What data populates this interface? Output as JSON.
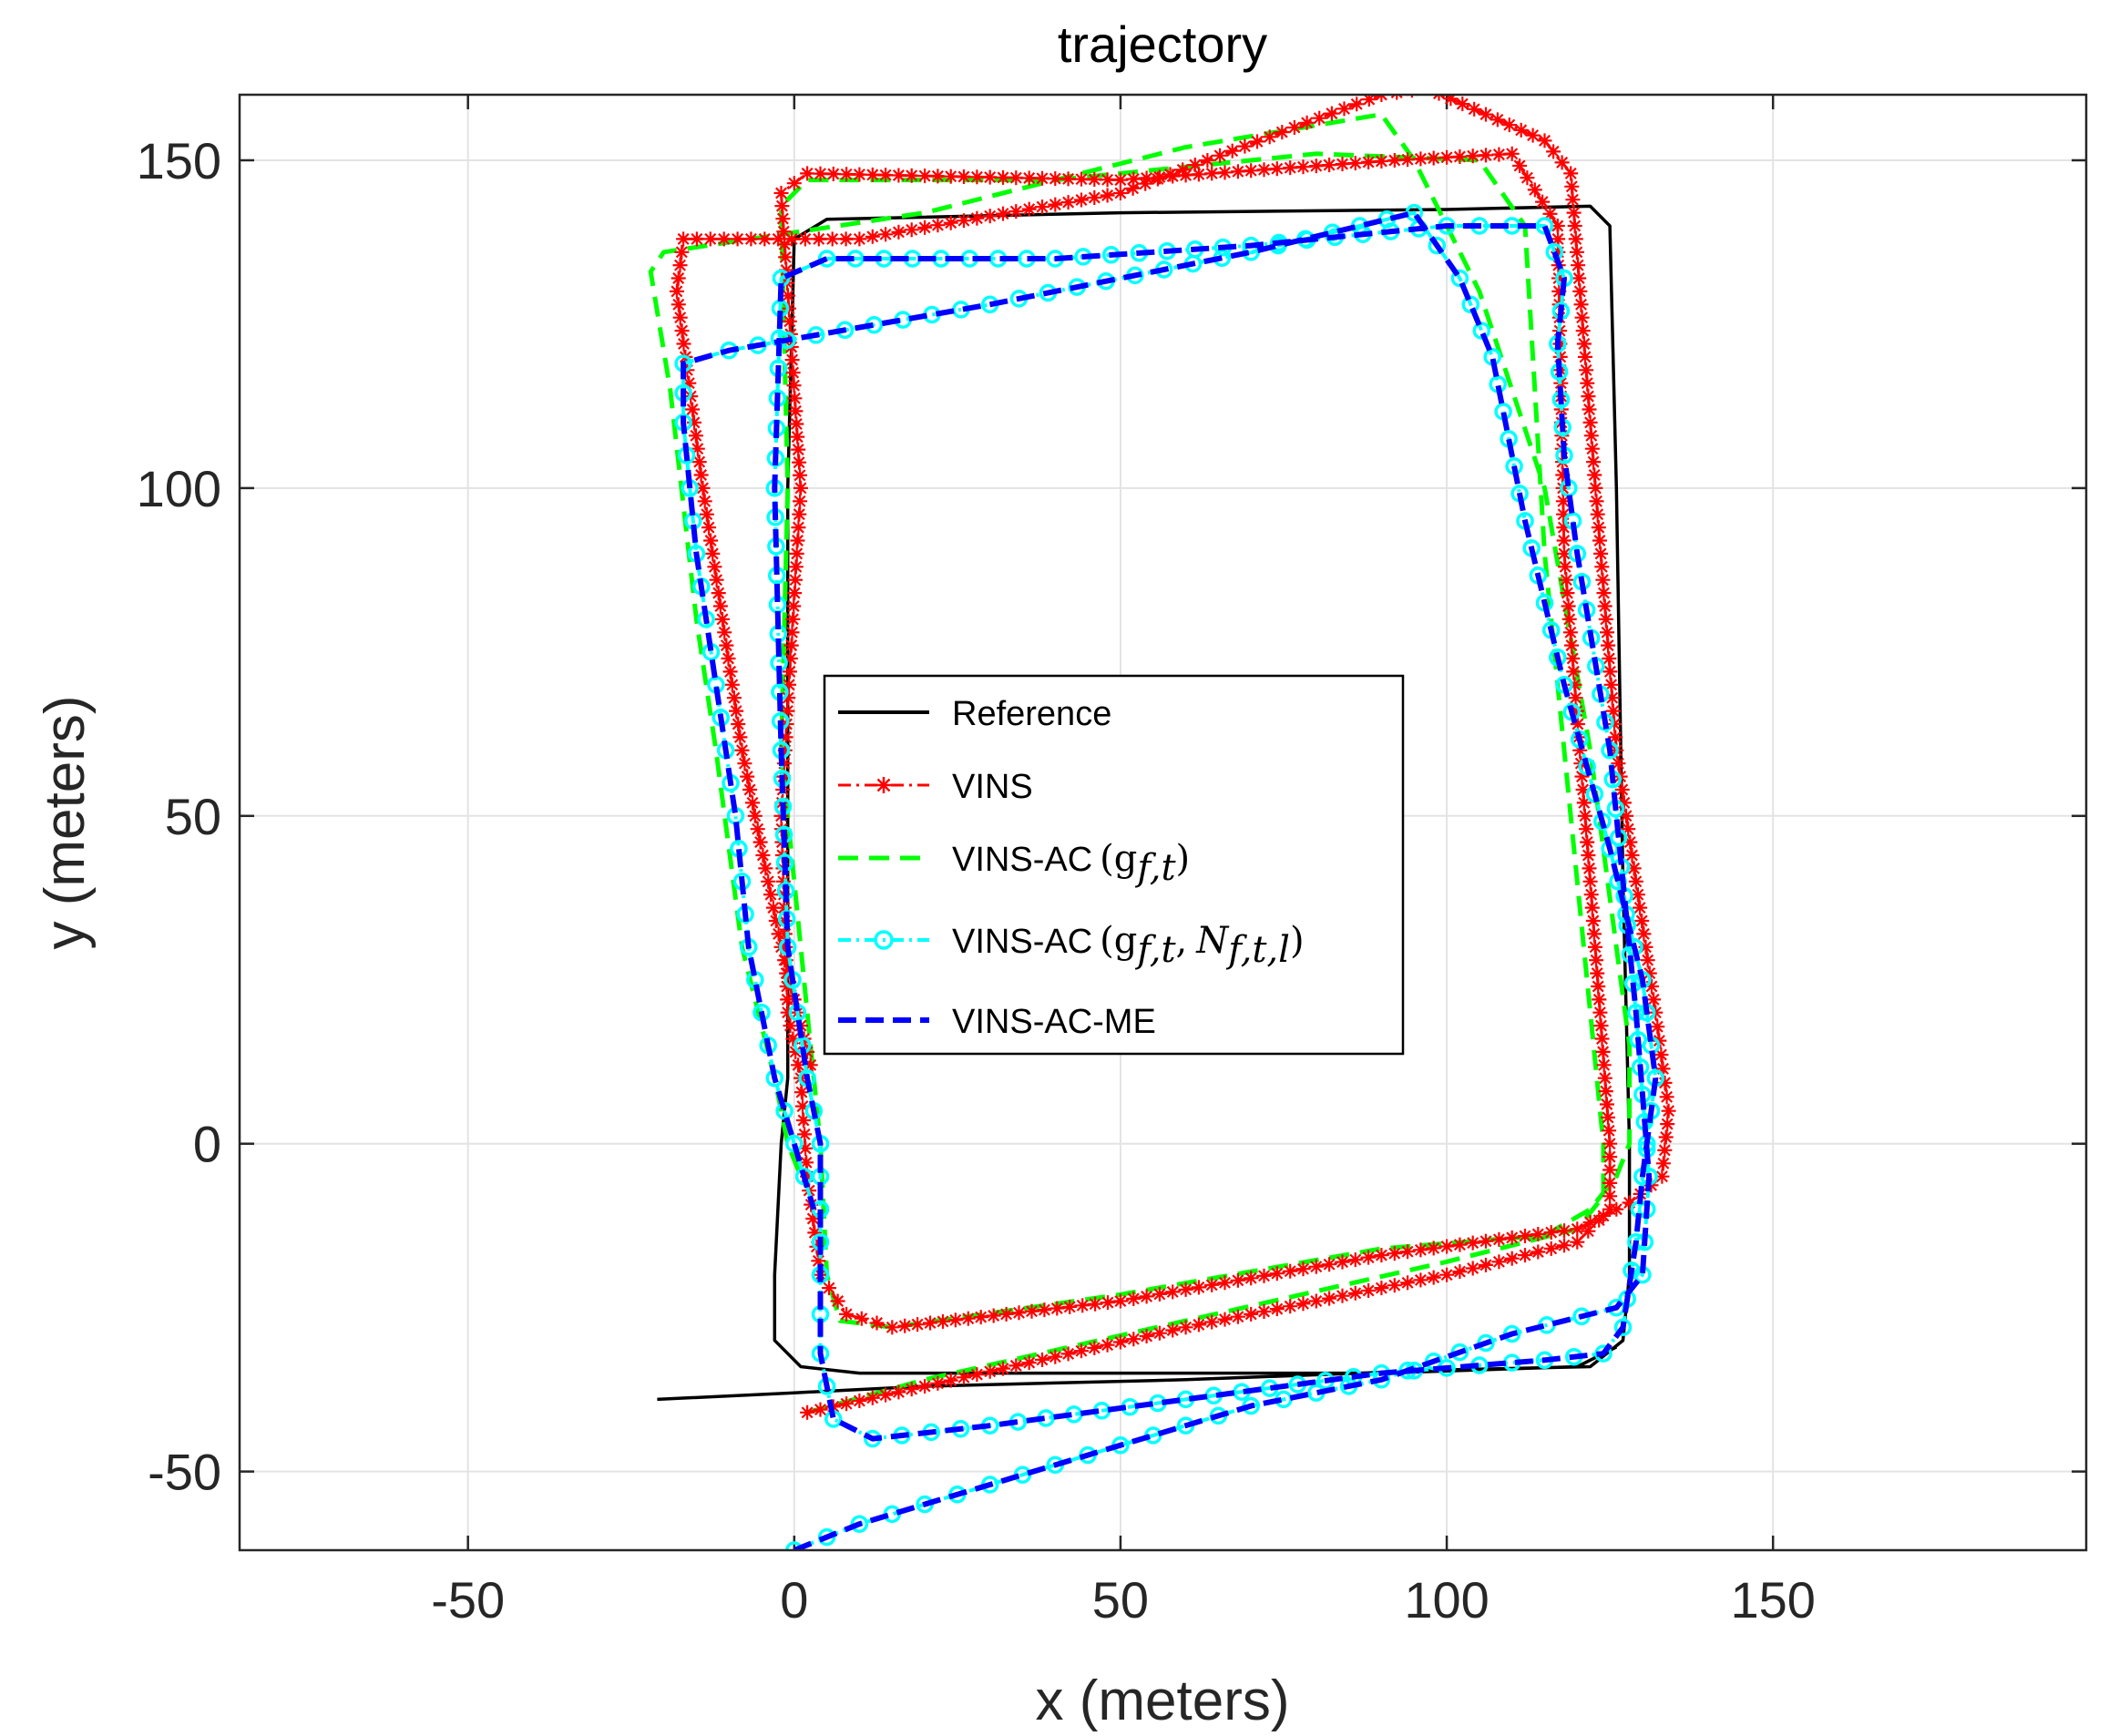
{
  "chart_data": {
    "type": "line",
    "title": "trajectory",
    "xlabel": "x (meters)",
    "ylabel": "y (meters)",
    "xlim": [
      -85,
      198
    ],
    "ylim": [
      -62,
      160
    ],
    "xticks": [
      -50,
      0,
      50,
      100,
      150
    ],
    "yticks": [
      -50,
      0,
      50,
      100,
      150
    ],
    "xtick_labels": [
      "-50",
      "0",
      "50",
      "100",
      "150"
    ],
    "ytick_labels": [
      "-50",
      "0",
      "50",
      "100",
      "150"
    ],
    "grid": true,
    "legend_location": "center",
    "legend_math": {
      "gft": "(g",
      "gft_sub": "f,t",
      "n_sym": "N",
      "n_sub": "f,t,l",
      "close": ")",
      "sep": ","
    },
    "series": [
      {
        "name": "Reference",
        "legend_label": "Reference",
        "color": "#000000",
        "style": "solid",
        "marker": "none",
        "points": [
          [
            -21,
            -39
          ],
          [
            0,
            -38
          ],
          [
            20,
            -37
          ],
          [
            60,
            -36
          ],
          [
            100,
            -34.5
          ],
          [
            122,
            -34
          ],
          [
            127,
            -30
          ],
          [
            128,
            -20
          ],
          [
            128,
            0
          ],
          [
            127,
            40
          ],
          [
            126,
            100
          ],
          [
            125,
            140
          ],
          [
            122,
            143
          ],
          [
            100,
            142.5
          ],
          [
            50,
            142
          ],
          [
            5,
            141
          ],
          [
            0,
            138
          ],
          [
            -1,
            100
          ],
          [
            -1,
            50
          ],
          [
            -1,
            10
          ],
          [
            -2,
            0
          ],
          [
            -3,
            -20
          ],
          [
            -3,
            -30
          ],
          [
            1,
            -34
          ],
          [
            10,
            -35
          ],
          [
            50,
            -35
          ],
          [
            90,
            -35
          ],
          [
            120,
            -34
          ],
          [
            126,
            -31
          ]
        ]
      },
      {
        "name": "VINS",
        "legend_label": "VINS",
        "color": "#ff0000",
        "style": "dashdot",
        "marker": "asterisk",
        "points": [
          [
            2,
            -41
          ],
          [
            20,
            -37
          ],
          [
            60,
            -28
          ],
          [
            100,
            -20
          ],
          [
            120,
            -15
          ],
          [
            125,
            -10
          ],
          [
            125,
            0
          ],
          [
            122,
            40
          ],
          [
            118,
            90
          ],
          [
            117,
            140
          ],
          [
            110,
            151
          ],
          [
            92,
            150
          ],
          [
            50,
            147
          ],
          [
            2,
            148
          ],
          [
            -2,
            145
          ],
          [
            1,
            100
          ],
          [
            -2,
            50
          ],
          [
            -1,
            20
          ],
          [
            1,
            10
          ],
          [
            2,
            -5
          ],
          [
            4,
            -20
          ],
          [
            8,
            -26
          ],
          [
            15,
            -28
          ],
          [
            50,
            -24
          ],
          [
            90,
            -17
          ],
          [
            120,
            -13
          ],
          [
            128,
            -9
          ],
          [
            133,
            -5
          ],
          [
            134,
            5
          ],
          [
            132,
            20
          ],
          [
            126,
            60
          ],
          [
            122,
            110
          ],
          [
            119,
            148
          ],
          [
            115,
            153
          ],
          [
            97,
            161
          ],
          [
            90,
            160
          ],
          [
            50,
            145
          ],
          [
            10,
            138
          ],
          [
            -17,
            138
          ],
          [
            -18,
            130
          ],
          [
            -14,
            100
          ],
          [
            -8,
            60
          ],
          [
            -2,
            30
          ],
          [
            3,
            10
          ]
        ]
      },
      {
        "name": "VINS-AC (g_{f,t})",
        "legend_label": "VINS-AC",
        "color": "#00ff00",
        "style": "dashed",
        "marker": "none",
        "points": [
          [
            2,
            -41
          ],
          [
            20,
            -36
          ],
          [
            60,
            -27
          ],
          [
            100,
            -18
          ],
          [
            120,
            -13
          ],
          [
            124,
            -8
          ],
          [
            124,
            0
          ],
          [
            120,
            40
          ],
          [
            115,
            90
          ],
          [
            112,
            140
          ],
          [
            105,
            150
          ],
          [
            80,
            151
          ],
          [
            40,
            147
          ],
          [
            2,
            147
          ],
          [
            -2,
            143
          ],
          [
            -1,
            100
          ],
          [
            -2,
            60
          ],
          [
            2,
            20
          ],
          [
            4,
            0
          ],
          [
            5,
            -20
          ],
          [
            7,
            -27
          ],
          [
            15,
            -28
          ],
          [
            50,
            -23
          ],
          [
            90,
            -16
          ],
          [
            115,
            -14
          ],
          [
            122,
            -10
          ],
          [
            126,
            -5
          ],
          [
            128,
            0
          ],
          [
            128,
            15
          ],
          [
            122,
            60
          ],
          [
            115,
            100
          ],
          [
            105,
            130
          ],
          [
            95,
            150
          ],
          [
            90,
            157
          ],
          [
            60,
            152
          ],
          [
            20,
            142
          ],
          [
            -20,
            136
          ],
          [
            -22,
            133
          ],
          [
            -19,
            115
          ],
          [
            -15,
            80
          ],
          [
            -12,
            60
          ],
          [
            -8,
            30
          ],
          [
            -3,
            10
          ],
          [
            -1,
            0
          ],
          [
            1,
            -5
          ]
        ]
      },
      {
        "name": "VINS-AC (g_{f,t}, N_{f,t,l})",
        "legend_label": "VINS-AC",
        "color": "#00ffff",
        "style": "dashdot",
        "marker": "circle",
        "points": [
          [
            0,
            -62
          ],
          [
            10,
            -58
          ],
          [
            30,
            -52
          ],
          [
            50,
            -46
          ],
          [
            70,
            -40
          ],
          [
            90,
            -36
          ],
          [
            110,
            -29
          ],
          [
            126,
            -25
          ],
          [
            130,
            -20
          ],
          [
            131,
            -5
          ],
          [
            129,
            20
          ],
          [
            125,
            60
          ],
          [
            120,
            90
          ],
          [
            118,
            105
          ],
          [
            117,
            122
          ],
          [
            118,
            132
          ],
          [
            115,
            140
          ],
          [
            100,
            140
          ],
          [
            70,
            137
          ],
          [
            40,
            135
          ],
          [
            5,
            135
          ],
          [
            -2,
            132
          ],
          [
            -3,
            100
          ],
          [
            -2,
            60
          ],
          [
            -1,
            30
          ],
          [
            2,
            10
          ],
          [
            4,
            0
          ],
          [
            4,
            -20
          ],
          [
            4,
            -32
          ],
          [
            6,
            -42
          ],
          [
            12,
            -45
          ],
          [
            30,
            -43
          ],
          [
            60,
            -39
          ],
          [
            90,
            -35
          ],
          [
            115,
            -33
          ],
          [
            124,
            -32
          ],
          [
            127,
            -28
          ],
          [
            129,
            -15
          ],
          [
            130,
            -5
          ],
          [
            132,
            10
          ],
          [
            130,
            25
          ],
          [
            125,
            45
          ],
          [
            118,
            70
          ],
          [
            112,
            95
          ],
          [
            107,
            120
          ],
          [
            102,
            132
          ],
          [
            95,
            142
          ],
          [
            70,
            136
          ],
          [
            30,
            128
          ],
          [
            -10,
            121
          ],
          [
            -17,
            119
          ],
          [
            -17,
            110
          ],
          [
            -15,
            90
          ],
          [
            -12,
            70
          ],
          [
            -9,
            50
          ],
          [
            -7,
            30
          ],
          [
            -3,
            10
          ],
          [
            0,
            0
          ],
          [
            3,
            -10
          ]
        ]
      },
      {
        "name": "VINS-AC-ME",
        "legend_label": "VINS-AC-ME",
        "color": "#0000ff",
        "style": "dashed",
        "marker": "none",
        "points": [
          [
            0,
            -62
          ],
          [
            10,
            -58
          ],
          [
            30,
            -52
          ],
          [
            50,
            -46
          ],
          [
            70,
            -40
          ],
          [
            90,
            -36
          ],
          [
            110,
            -29
          ],
          [
            126,
            -25
          ],
          [
            130,
            -20
          ],
          [
            131,
            -5
          ],
          [
            129,
            20
          ],
          [
            125,
            60
          ],
          [
            120,
            90
          ],
          [
            118,
            105
          ],
          [
            117,
            122
          ],
          [
            118,
            132
          ],
          [
            115,
            140
          ],
          [
            100,
            140
          ],
          [
            70,
            137
          ],
          [
            40,
            135
          ],
          [
            5,
            135
          ],
          [
            -2,
            132
          ],
          [
            -3,
            100
          ],
          [
            -2,
            60
          ],
          [
            -1,
            30
          ],
          [
            2,
            10
          ],
          [
            4,
            0
          ],
          [
            4,
            -20
          ],
          [
            4,
            -32
          ],
          [
            6,
            -42
          ],
          [
            12,
            -45
          ],
          [
            30,
            -43
          ],
          [
            60,
            -39
          ],
          [
            90,
            -35
          ],
          [
            115,
            -33
          ],
          [
            124,
            -32
          ],
          [
            127,
            -28
          ],
          [
            129,
            -15
          ],
          [
            130,
            -5
          ],
          [
            132,
            10
          ],
          [
            130,
            25
          ],
          [
            125,
            45
          ],
          [
            118,
            70
          ],
          [
            112,
            95
          ],
          [
            107,
            120
          ],
          [
            102,
            132
          ],
          [
            95,
            142
          ],
          [
            70,
            136
          ],
          [
            30,
            128
          ],
          [
            -10,
            121
          ],
          [
            -17,
            119
          ],
          [
            -17,
            110
          ],
          [
            -15,
            90
          ],
          [
            -12,
            70
          ],
          [
            -9,
            50
          ],
          [
            -7,
            30
          ],
          [
            -3,
            10
          ],
          [
            0,
            0
          ],
          [
            3,
            -10
          ]
        ]
      }
    ]
  }
}
